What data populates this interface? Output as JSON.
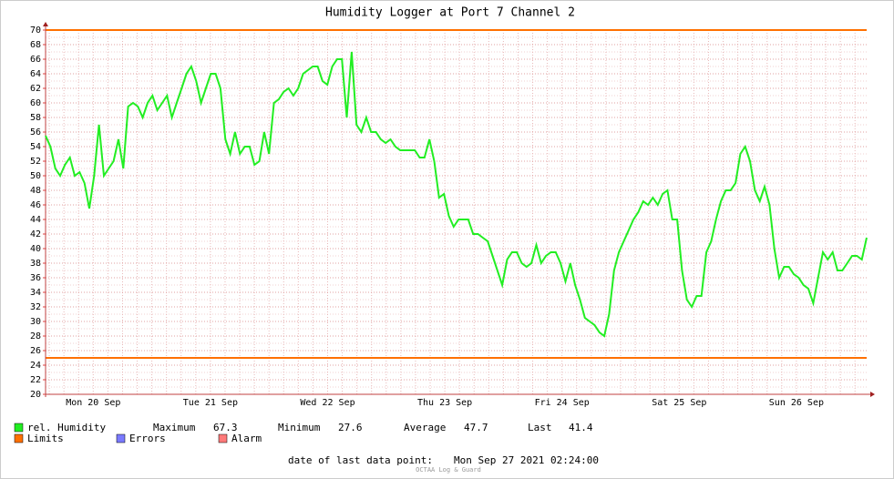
{
  "chart_data": {
    "type": "line",
    "title": "Humidity Logger at Port 7 Channel 2",
    "ylim": [
      20,
      70
    ],
    "yticks": [
      20,
      22,
      24,
      26,
      28,
      30,
      32,
      34,
      36,
      38,
      40,
      42,
      44,
      46,
      48,
      50,
      52,
      54,
      56,
      58,
      60,
      62,
      64,
      66,
      68,
      70
    ],
    "grid": true,
    "xticks": [
      "Mon 20 Sep",
      "Tue 21 Sep",
      "Wed 22 Sep",
      "Thu 23 Sep",
      "Fri 24 Sep",
      "Sat 25 Sep",
      "Sun 26 Sep"
    ],
    "limits": {
      "values": [
        70,
        25
      ],
      "color": "#ff7000"
    },
    "series": [
      {
        "name": "rel. Humidity",
        "color": "#22ee22",
        "values": [
          55.5,
          54,
          51,
          50,
          51.5,
          52.5,
          50,
          50.5,
          49,
          45.5,
          50,
          57,
          50,
          51,
          52,
          55,
          51,
          59.5,
          60,
          59.5,
          58,
          60,
          61,
          59,
          60,
          61,
          58,
          60,
          62,
          64,
          65,
          63,
          60,
          62,
          64,
          64,
          62,
          55,
          53,
          56,
          53,
          54,
          54,
          51.5,
          52,
          56,
          53,
          60,
          60.5,
          61.5,
          62,
          61,
          62,
          64,
          64.5,
          65,
          65,
          63,
          62.5,
          65,
          66,
          66,
          58,
          67,
          57,
          56,
          58,
          56,
          56,
          55,
          54.5,
          55,
          54,
          53.5,
          53.5,
          53.5,
          53.5,
          52.5,
          52.5,
          55,
          52,
          47,
          47.5,
          44.5,
          43,
          44,
          44,
          44,
          42,
          42,
          41.5,
          41,
          39,
          37,
          35,
          38.5,
          39.5,
          39.5,
          38,
          37.5,
          38,
          40.5,
          38,
          39,
          39.5,
          39.5,
          38,
          35.5,
          38,
          35,
          33,
          30.5,
          30,
          29.5,
          28.5,
          28,
          31,
          37,
          39.5,
          41,
          42.5,
          44,
          45,
          46.5,
          46,
          47,
          46,
          47.5,
          48,
          44,
          44,
          37,
          33,
          32,
          33.5,
          33.5,
          39.5,
          41,
          44,
          46.5,
          48,
          48,
          49,
          53,
          54,
          52,
          48,
          46.5,
          48.5,
          46,
          40,
          36,
          37.5,
          37.5,
          36.5,
          36,
          35,
          34.5,
          32.5,
          36,
          39.5,
          38.5,
          39.5,
          37,
          37,
          38,
          39,
          39,
          38.5,
          41.5
        ]
      }
    ],
    "legend": [
      {
        "name": "Limits",
        "color": "#ff7000"
      },
      {
        "name": "Errors",
        "color": "#7a7aff"
      },
      {
        "name": "Alarm",
        "color": "#ff7a7a"
      }
    ],
    "stats": [
      {
        "label": "Maximum",
        "value": 67.3
      },
      {
        "label": "Minimum",
        "value": 27.6
      },
      {
        "label": "Average",
        "value": 47.7
      },
      {
        "label": "Last",
        "value": 41.4
      }
    ],
    "footer": {
      "label": "date of last data point:",
      "value": "Mon Sep 27 2021 02:24:00"
    },
    "watermark": "OCTAA Log & Guard"
  }
}
